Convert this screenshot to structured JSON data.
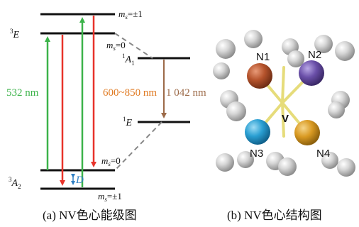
{
  "energy_diagram": {
    "levels": {
      "excited_triplet": "E",
      "excited_triplet_sup": "3",
      "ground_triplet": "A",
      "ground_triplet_sub": "2",
      "ground_triplet_sup": "3",
      "singlet_upper": "A",
      "singlet_upper_sub": "1",
      "singlet_upper_sup": "1",
      "singlet_lower": "E",
      "singlet_lower_sup": "1"
    },
    "ms_labels": {
      "top_pm1": "±1",
      "top_zero": "=0",
      "bot_zero": "=0",
      "bot_pm1": "=±1",
      "prefix": "m",
      "sub": "s"
    },
    "wavelength_green": "532 nm",
    "wavelength_orange": "600~850 nm",
    "wavelength_brown": "1 042 nm",
    "splitting_label": "D",
    "colors": {
      "green": "#3cb34a",
      "red": "#e8332a",
      "orange": "#e07a22",
      "brown": "#9c6a48",
      "blue": "#2f7fc4",
      "dashed": "#888888"
    }
  },
  "structure": {
    "atoms": [
      "N1",
      "N2",
      "N3",
      "N4"
    ],
    "center": "V",
    "colors": {
      "N1": "#b5532c",
      "N2": "#6a4fa8",
      "N3": "#2a9fd2",
      "N4": "#d99a22",
      "H": "#c8c8c8",
      "bond": "#e6dc7a"
    }
  },
  "captions": {
    "left": "(a) NV色心能级图",
    "right": "(b) NV色心结构图"
  }
}
